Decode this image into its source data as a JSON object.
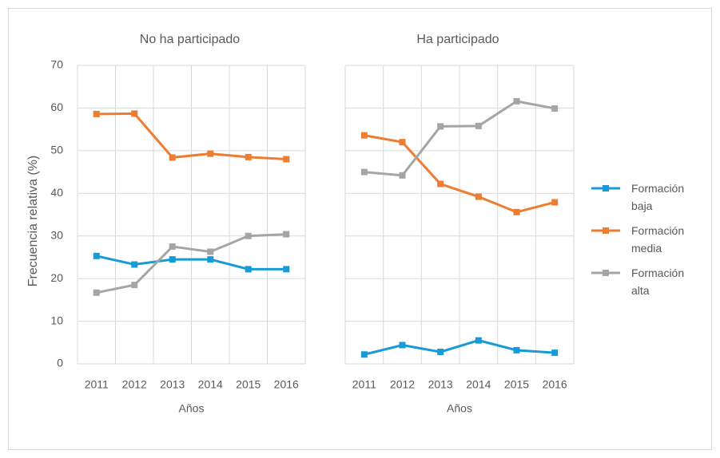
{
  "chart_data": [
    {
      "type": "line",
      "title": "No ha participado",
      "xlabel": "Años",
      "ylabel": "Frecuencia relativa (%)",
      "categories": [
        "2011",
        "2012",
        "2013",
        "2014",
        "2015",
        "2016"
      ],
      "ylim": [
        0,
        70
      ],
      "yticks": [
        0,
        10,
        20,
        30,
        40,
        50,
        60,
        70
      ],
      "grid": true,
      "series": [
        {
          "name": "Formación baja",
          "color": "#179bd7",
          "values": [
            25.3,
            23.3,
            24.5,
            24.5,
            22.2,
            22.2
          ]
        },
        {
          "name": "Formación media",
          "color": "#ed7d31",
          "values": [
            58.6,
            58.7,
            48.4,
            49.3,
            48.5,
            48.0
          ]
        },
        {
          "name": "Formación alta",
          "color": "#a5a5a5",
          "values": [
            16.7,
            18.5,
            27.5,
            26.3,
            30.0,
            30.4
          ]
        }
      ]
    },
    {
      "type": "line",
      "title": "Ha participado",
      "xlabel": "Años",
      "categories": [
        "2011",
        "2012",
        "2013",
        "2014",
        "2015",
        "2016"
      ],
      "ylim": [
        0,
        70
      ],
      "yticks": [
        0,
        10,
        20,
        30,
        40,
        50,
        60,
        70
      ],
      "grid": true,
      "series": [
        {
          "color": "#179bd7",
          "values": [
            2.2,
            4.4,
            2.8,
            5.5,
            3.2,
            2.6
          ]
        },
        {
          "color": "#ed7d31",
          "values": [
            53.6,
            52.0,
            42.2,
            39.2,
            35.6,
            37.9
          ]
        },
        {
          "color": "#a5a5a5",
          "values": [
            45.0,
            44.2,
            55.7,
            55.8,
            61.6,
            59.9
          ]
        }
      ]
    }
  ]
}
